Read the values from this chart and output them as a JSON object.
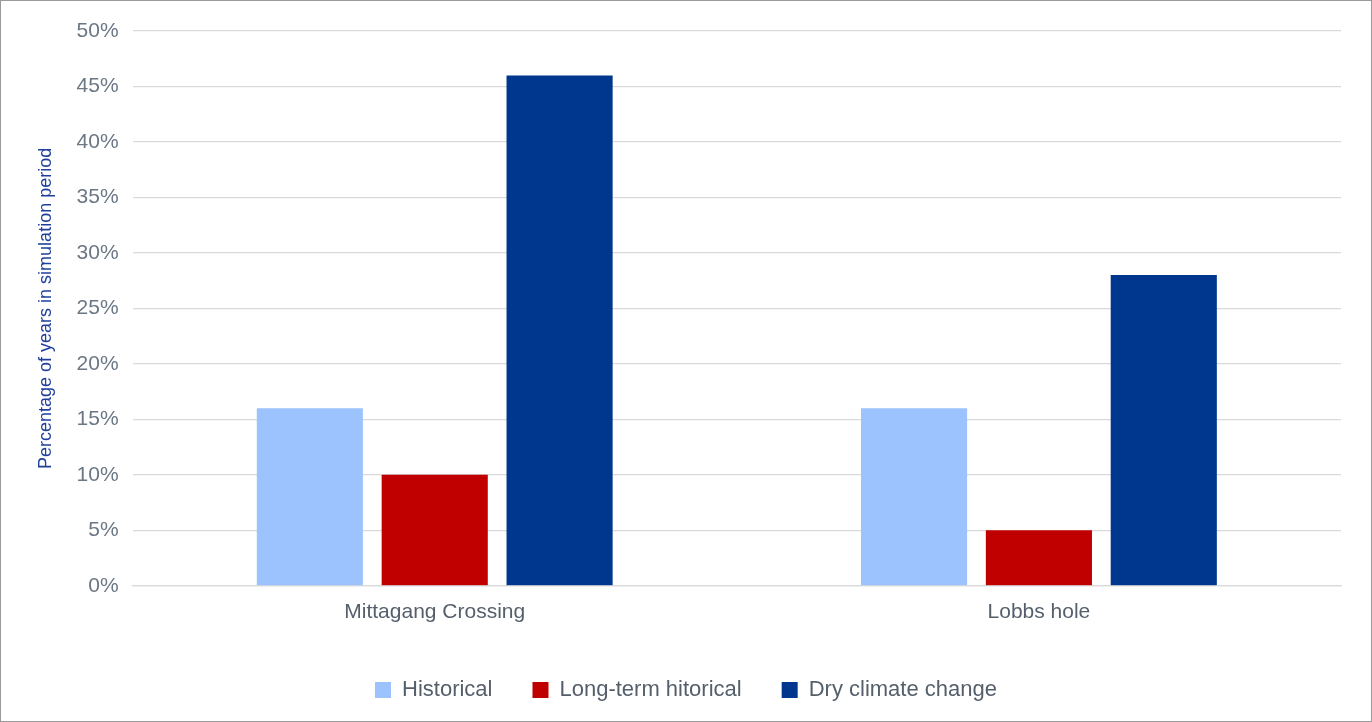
{
  "chart_data": {
    "type": "bar",
    "ylabel": "Percentage of years in simulation period",
    "categories": [
      "Mittagang Crossing",
      "Lobbs hole"
    ],
    "series": [
      {
        "name": "Historical",
        "color": "#9dc3fe",
        "values": [
          16,
          16
        ]
      },
      {
        "name": "Long-term hitorical",
        "color": "#c00000",
        "values": [
          10,
          5
        ]
      },
      {
        "name": "Dry climate change",
        "color": "#00378e",
        "values": [
          46,
          28
        ]
      }
    ],
    "ylim": [
      0,
      50
    ],
    "yticks": [
      {
        "value": 0,
        "label": "0%"
      },
      {
        "value": 5,
        "label": "5%"
      },
      {
        "value": 10,
        "label": "10%"
      },
      {
        "value": 15,
        "label": "15%"
      },
      {
        "value": 20,
        "label": "20%"
      },
      {
        "value": 25,
        "label": "25%"
      },
      {
        "value": 30,
        "label": "30%"
      },
      {
        "value": 35,
        "label": "35%"
      },
      {
        "value": 40,
        "label": "40%"
      },
      {
        "value": 45,
        "label": "45%"
      },
      {
        "value": 50,
        "label": "50%"
      }
    ],
    "grid": "y",
    "legend": "bottom"
  }
}
